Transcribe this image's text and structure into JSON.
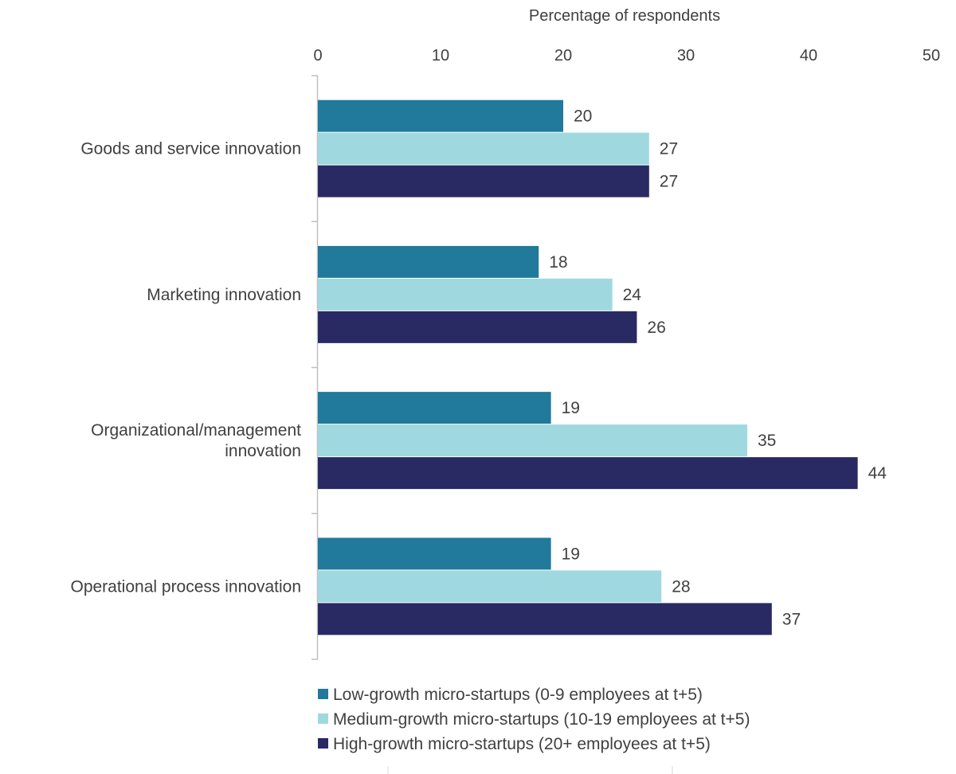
{
  "chart_data": {
    "type": "bar",
    "orientation": "horizontal",
    "xlabel": "Percentage of respondents",
    "xlim": [
      0,
      50
    ],
    "xticks": [
      0,
      10,
      20,
      30,
      40,
      50
    ],
    "categories": [
      [
        "Goods and service innovation"
      ],
      [
        "Marketing innovation"
      ],
      [
        "Organizational/management",
        "innovation"
      ],
      [
        "Operational process innovation"
      ]
    ],
    "series": [
      {
        "name": "Low-growth micro-startups (0-9 employees at t+5)",
        "color": "#21799b",
        "values": [
          20,
          18,
          19,
          19
        ],
        "labels": [
          "20",
          "18",
          "19",
          "19"
        ]
      },
      {
        "name": "Medium-growth micro-startups (10-19 employees at t+5)",
        "color": "#9fd9df",
        "values": [
          27,
          24,
          35,
          28
        ],
        "labels": [
          "27",
          "24",
          "35",
          "28"
        ]
      },
      {
        "name": "High-growth micro-startups (20+ employees at t+5)",
        "color": "#292a63",
        "values": [
          27,
          26,
          44,
          37
        ],
        "labels": [
          "27",
          "26",
          "44",
          "37"
        ]
      }
    ],
    "legend_position": "bottom"
  }
}
